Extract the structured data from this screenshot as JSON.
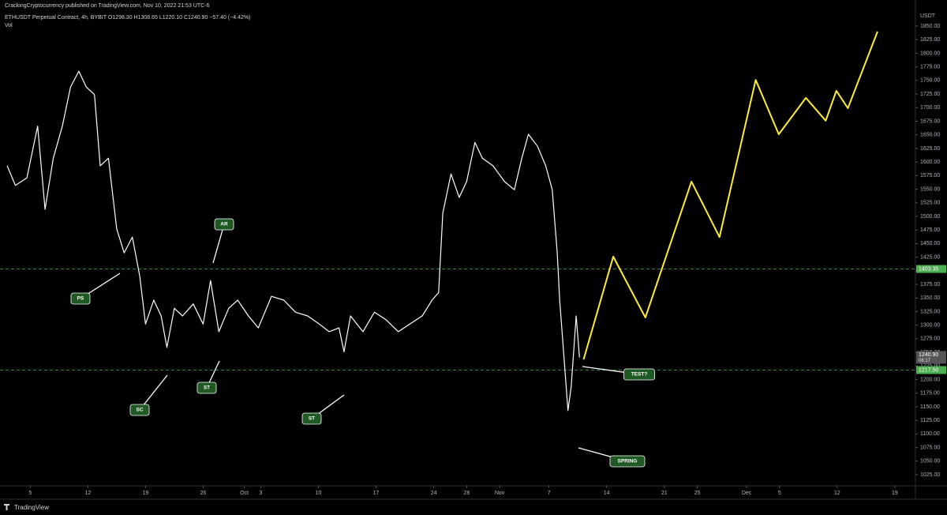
{
  "header": {
    "publisher": "CrackingCryptocurrency published on TradingView.com, Nov 10, 2022 21:53 UTC-6",
    "legend": "ETHUSDT Perpetual Contract, 4h, BYBIT  O1298.30  H1308.65  L1220.10  C1240.90  −57.40 (−4.42%)",
    "indicator": "Vol"
  },
  "footer": {
    "brand": "TradingView"
  },
  "chart_data": {
    "type": "line",
    "y_unit": "USDT",
    "xlim": [
      1,
      111.5
    ],
    "ylim": [
      1004.7,
      1880.5
    ],
    "xticks": [
      {
        "value": 4,
        "label": "5"
      },
      {
        "value": 11,
        "label": "12"
      },
      {
        "value": 18,
        "label": "19"
      },
      {
        "value": 25,
        "label": "26"
      },
      {
        "value": 30,
        "label": "Oct"
      },
      {
        "value": 32,
        "label": "3"
      },
      {
        "value": 39,
        "label": "10"
      },
      {
        "value": 46,
        "label": "17"
      },
      {
        "value": 53,
        "label": "24"
      },
      {
        "value": 57,
        "label": "28"
      },
      {
        "value": 61,
        "label": "Nov"
      },
      {
        "value": 67,
        "label": "7"
      },
      {
        "value": 74,
        "label": "14"
      },
      {
        "value": 81,
        "label": "21"
      },
      {
        "value": 85,
        "label": "25"
      },
      {
        "value": 91,
        "label": "Dec"
      },
      {
        "value": 95,
        "label": "5"
      },
      {
        "value": 102,
        "label": "12"
      },
      {
        "value": 109,
        "label": "19"
      }
    ],
    "yticks": [
      {
        "value": 1025,
        "label": "1025.00"
      },
      {
        "value": 1050,
        "label": "1050.00"
      },
      {
        "value": 1075,
        "label": "1075.00"
      },
      {
        "value": 1100,
        "label": "1100.00"
      },
      {
        "value": 1125,
        "label": "1125.00"
      },
      {
        "value": 1150,
        "label": "1150.00"
      },
      {
        "value": 1175,
        "label": "1175.00"
      },
      {
        "value": 1200,
        "label": "1200.00"
      },
      {
        "value": 1225,
        "label": "1225.00"
      },
      {
        "value": 1250,
        "label": "1250.00"
      },
      {
        "value": 1275,
        "label": "1275.00"
      },
      {
        "value": 1300,
        "label": "1300.00"
      },
      {
        "value": 1325,
        "label": "1325.00"
      },
      {
        "value": 1350,
        "label": "1350.00"
      },
      {
        "value": 1375,
        "label": "1375.00"
      },
      {
        "value": 1400,
        "label": "1400.00"
      },
      {
        "value": 1425,
        "label": "1425.00"
      },
      {
        "value": 1450,
        "label": "1450.00"
      },
      {
        "value": 1475,
        "label": "1475.00"
      },
      {
        "value": 1500,
        "label": "1500.00"
      },
      {
        "value": 1525,
        "label": "1525.00"
      },
      {
        "value": 1550,
        "label": "1550.00"
      },
      {
        "value": 1575,
        "label": "1575.00"
      },
      {
        "value": 1600,
        "label": "1600.00"
      },
      {
        "value": 1625,
        "label": "1625.00"
      },
      {
        "value": 1650,
        "label": "1650.00"
      },
      {
        "value": 1675,
        "label": "1675.00"
      },
      {
        "value": 1700,
        "label": "1700.00"
      },
      {
        "value": 1725,
        "label": "1725.00"
      },
      {
        "value": 1750,
        "label": "1750.00"
      },
      {
        "value": 1775,
        "label": "1775.00"
      },
      {
        "value": 1800,
        "label": "1800.00"
      },
      {
        "value": 1825,
        "label": "1825.00"
      },
      {
        "value": 1850,
        "label": "1850.00"
      }
    ],
    "series": [
      {
        "color": "#ffffff",
        "x": [
          1.2,
          2.2,
          3.6,
          4.9,
          5.8,
          6.8,
          7.9,
          8.9,
          9.9,
          10.8,
          11.8,
          12.5,
          13.5,
          14.5,
          15.4,
          16.4,
          17.3,
          18,
          19,
          19.9,
          20.6,
          21.5,
          22.5,
          23.8,
          25,
          25.9,
          26.9,
          28.1,
          29.2,
          30.5,
          31.7,
          33.3,
          34.8,
          36.2,
          37.7,
          39.1,
          40.3,
          41.5,
          42.1,
          42.9,
          44.4,
          45.8,
          47.2,
          48.7,
          50.1,
          51.6,
          52.8,
          53.6,
          54.1,
          55.1,
          56.1,
          57,
          58,
          58.9,
          60.2,
          61.6,
          62.8,
          63.7,
          64.5,
          65.6,
          66.6,
          67.4,
          68,
          68.3,
          68.8,
          69.3,
          69.7,
          70.3,
          70.7
        ],
        "values": [
          1593,
          1557,
          1571,
          1666,
          1513,
          1607,
          1666,
          1738,
          1767,
          1738,
          1724,
          1593,
          1607,
          1477,
          1433,
          1462,
          1390,
          1302,
          1346,
          1317,
          1259,
          1331,
          1317,
          1339,
          1302,
          1382,
          1288,
          1331,
          1346,
          1317,
          1295,
          1353,
          1346,
          1324,
          1317,
          1302,
          1288,
          1295,
          1251,
          1317,
          1288,
          1324,
          1310,
          1288,
          1302,
          1317,
          1346,
          1360,
          1506,
          1578,
          1535,
          1564,
          1636,
          1607,
          1593,
          1564,
          1549,
          1607,
          1651,
          1629,
          1593,
          1549,
          1433,
          1346,
          1244,
          1143,
          1187,
          1317,
          1240.9
        ]
      },
      {
        "color": "#ffeb3b",
        "x": [
          71.2,
          74.8,
          78.7,
          84.3,
          87.7,
          92.1,
          94.9,
          98.2,
          100.6,
          101.9,
          103.3,
          106.9
        ],
        "values": [
          1237,
          1426,
          1314,
          1564,
          1462,
          1751,
          1651,
          1718,
          1676,
          1731,
          1699,
          1840
        ]
      }
    ],
    "levels": [
      {
        "value": 1403.35,
        "label": "1403.35",
        "color": "#4caf50"
      },
      {
        "value": 1217.5,
        "label": "1217.50",
        "color": "#4caf50"
      }
    ],
    "last_price": {
      "value": 1240.9,
      "label": "1240.90",
      "countdown": "06:17"
    },
    "annotations": [
      {
        "text": "PS"
      },
      {
        "text": "SC"
      },
      {
        "text": "AR"
      },
      {
        "text": "ST"
      },
      {
        "text": "ST"
      },
      {
        "text": "TEST?"
      },
      {
        "text": "SPRING"
      }
    ]
  }
}
